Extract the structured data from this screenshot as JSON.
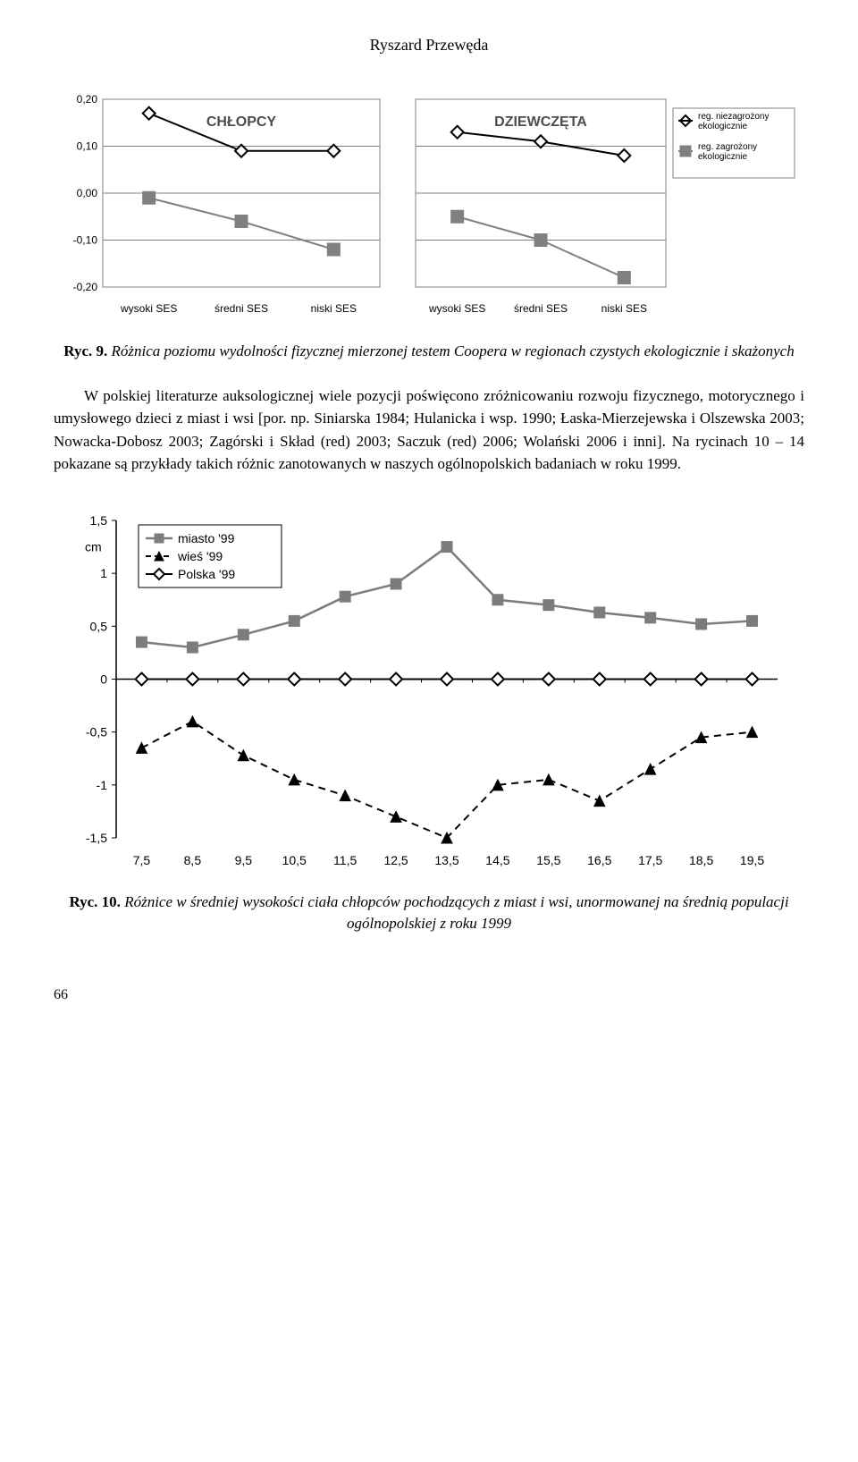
{
  "author": "Ryszard Przewęda",
  "chart1": {
    "type": "line",
    "left": {
      "title": "CHŁOPCY",
      "title_fontsize": 16,
      "title_weight": "bold",
      "x_categories": [
        "wysoki SES",
        "średni SES",
        "niski SES"
      ],
      "series1": {
        "name": "reg. niezagrożony ekologicznie",
        "marker": "diamond-open",
        "color": "#000000",
        "values": [
          0.17,
          0.09,
          0.09
        ]
      },
      "series2": {
        "name": "reg. zagrożony ekologicznie",
        "marker": "square-filled",
        "color": "#808080",
        "values": [
          -0.01,
          -0.06,
          -0.12
        ]
      },
      "yticks": [
        -0.2,
        -0.1,
        0.0,
        0.1,
        0.2
      ],
      "ylim": [
        -0.2,
        0.2
      ],
      "grid_color": "#808080",
      "background": "#ffffff"
    },
    "right": {
      "title": "DZIEWCZĘTA",
      "title_fontsize": 16,
      "title_weight": "bold",
      "x_categories": [
        "wysoki SES",
        "średni SES",
        "niski SES"
      ],
      "series1": {
        "name": "reg. niezagrożony ekologicznie",
        "marker": "diamond-open",
        "color": "#000000",
        "values": [
          0.13,
          0.11,
          0.08
        ]
      },
      "series2": {
        "name": "reg. zagrożony ekologicznie",
        "marker": "square-filled",
        "color": "#808080",
        "values": [
          -0.05,
          -0.1,
          -0.18
        ]
      },
      "yticks": [
        -0.2,
        -0.1,
        0.0,
        0.1,
        0.2
      ],
      "ylim": [
        -0.2,
        0.2
      ],
      "grid_color": "#808080",
      "background": "#ffffff",
      "legend_items": [
        "reg. niezagrożony ekologicznie",
        "reg. zagrożony ekologicznie"
      ]
    },
    "axis_fontsize": 12
  },
  "fig9": {
    "label": "Ryc. 9.",
    "text": "Różnica poziomu wydolności fizycznej mierzonej testem Coopera w regionach czystych ekologicznie i skażonych"
  },
  "paragraph": "W polskiej literaturze auksologicznej wiele pozycji poświęcono zróżnicowaniu rozwoju fizycznego, motorycznego i umysłowego dzieci z miast i wsi [por. np. Siniarska 1984; Hulanicka i wsp. 1990; Łaska-Mierzejewska i Olszewska 2003; Nowacka-Dobosz 2003; Zagórski i Skład (red) 2003; Saczuk (red) 2006; Wolański 2006 i inni]. Na rycinach 10 – 14 pokazane są przykłady takich różnic zanotowanych w naszych ogólnopolskich badaniach w roku 1999.",
  "chart2": {
    "type": "line",
    "x_values": [
      7.5,
      8.5,
      9.5,
      10.5,
      11.5,
      12.5,
      13.5,
      14.5,
      15.5,
      16.5,
      17.5,
      18.5,
      19.5
    ],
    "xlim": [
      7.0,
      20.0
    ],
    "ylim": [
      -1.5,
      1.5
    ],
    "yticks": [
      -1.5,
      -1.0,
      -0.5,
      0,
      0.5,
      1.0,
      1.5
    ],
    "ytick_labels": [
      "-1,5",
      "-1",
      "-0,5",
      "0",
      "0,5",
      "1",
      "1,5"
    ],
    "y_unit": "cm",
    "y_unit_fontsize": 14,
    "legend": [
      {
        "label": "miasto '99",
        "style": "solid-square",
        "color": "#7c7c7c"
      },
      {
        "label": "wieś   '99",
        "style": "dashed-triangle",
        "color": "#000000"
      },
      {
        "label": "Polska '99",
        "style": "solid-diamond-open",
        "color": "#000000"
      }
    ],
    "series_miasto": {
      "color": "#7c7c7c",
      "marker": "square-filled",
      "line": "solid",
      "values": [
        0.35,
        0.3,
        0.42,
        0.55,
        0.78,
        0.9,
        1.25,
        0.75,
        0.7,
        0.63,
        0.58,
        0.52,
        0.55
      ]
    },
    "series_wies": {
      "color": "#000000",
      "marker": "triangle-filled",
      "line": "dashed",
      "values": [
        -0.65,
        -0.4,
        -0.72,
        -0.95,
        -1.1,
        -1.3,
        -1.5,
        -1.0,
        -0.95,
        -1.15,
        -0.85,
        -0.55,
        -0.5
      ]
    },
    "series_polska": {
      "color": "#000000",
      "marker": "diamond-open",
      "line": "solid",
      "values": [
        0,
        0,
        0,
        0,
        0,
        0,
        0,
        0,
        0,
        0,
        0,
        0,
        0
      ]
    },
    "axis_fontsize": 14,
    "background": "#ffffff",
    "axis_color": "#000000"
  },
  "fig10": {
    "label": "Ryc. 10.",
    "text": "Różnice w średniej wysokości ciała chłopców pochodzących z miast i wsi, unormowanej na średnią populacji ogólnopolskiej z roku 1999"
  },
  "page_number": "66"
}
